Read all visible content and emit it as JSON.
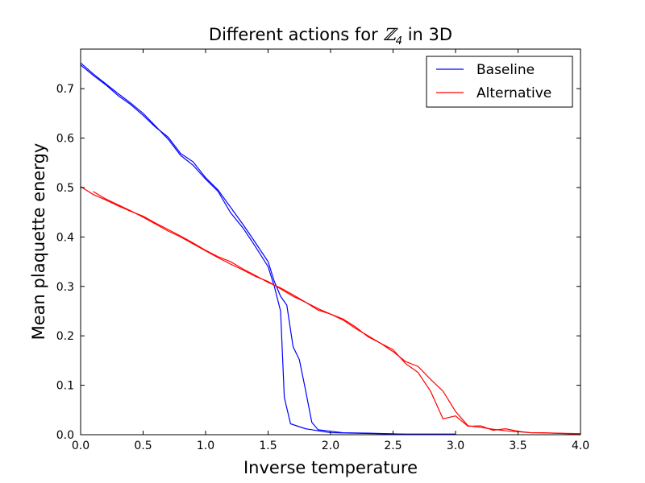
{
  "chart_data": {
    "type": "line",
    "title": "Different actions for ℤ₄ in 3D",
    "title_prefix": "Different actions for ",
    "title_math": "ℤ",
    "title_sub": "4",
    "title_suffix": " in 3D",
    "xlabel": "Inverse temperature",
    "ylabel": "Mean plaquette energy",
    "xlim": [
      0.0,
      4.0
    ],
    "ylim": [
      0.0,
      0.78
    ],
    "x_ticks": [
      "0.0",
      "0.5",
      "1.0",
      "1.5",
      "2.0",
      "2.5",
      "3.0",
      "3.5",
      "4.0"
    ],
    "y_ticks": [
      "0.0",
      "0.1",
      "0.2",
      "0.3",
      "0.4",
      "0.5",
      "0.6",
      "0.7"
    ],
    "grid": false,
    "legend": "top-right",
    "series": [
      {
        "name": "Baseline",
        "color": "#0000ff",
        "segments": [
          [
            [
              0.0,
              0.752
            ],
            [
              0.1,
              0.73
            ],
            [
              0.2,
              0.71
            ],
            [
              0.3,
              0.69
            ],
            [
              0.4,
              0.671
            ],
            [
              0.5,
              0.65
            ],
            [
              0.6,
              0.624
            ],
            [
              0.7,
              0.598
            ],
            [
              0.8,
              0.565
            ],
            [
              0.9,
              0.545
            ],
            [
              1.0,
              0.517
            ],
            [
              1.1,
              0.492
            ],
            [
              1.2,
              0.449
            ],
            [
              1.3,
              0.418
            ],
            [
              1.4,
              0.38
            ],
            [
              1.5,
              0.34
            ],
            [
              1.55,
              0.3
            ],
            [
              1.6,
              0.25
            ],
            [
              1.63,
              0.075
            ],
            [
              1.68,
              0.022
            ],
            [
              1.8,
              0.012
            ],
            [
              1.9,
              0.008
            ],
            [
              2.0,
              0.004
            ],
            [
              2.2,
              0.003
            ],
            [
              2.4,
              0.002
            ],
            [
              2.6,
              0.001
            ],
            [
              3.0,
              0.001
            ]
          ],
          [
            [
              0.0,
              0.748
            ],
            [
              0.1,
              0.727
            ],
            [
              0.2,
              0.708
            ],
            [
              0.3,
              0.686
            ],
            [
              0.4,
              0.668
            ],
            [
              0.5,
              0.646
            ],
            [
              0.6,
              0.622
            ],
            [
              0.7,
              0.602
            ],
            [
              0.8,
              0.569
            ],
            [
              0.9,
              0.552
            ],
            [
              1.0,
              0.52
            ],
            [
              1.1,
              0.495
            ],
            [
              1.2,
              0.46
            ],
            [
              1.3,
              0.425
            ],
            [
              1.4,
              0.388
            ],
            [
              1.5,
              0.35
            ],
            [
              1.55,
              0.31
            ],
            [
              1.6,
              0.28
            ],
            [
              1.65,
              0.262
            ],
            [
              1.7,
              0.178
            ],
            [
              1.75,
              0.152
            ],
            [
              1.8,
              0.09
            ],
            [
              1.85,
              0.025
            ],
            [
              1.9,
              0.01
            ],
            [
              2.0,
              0.007
            ],
            [
              2.1,
              0.004
            ],
            [
              2.3,
              0.003
            ],
            [
              2.6,
              0.001
            ],
            [
              3.0,
              0.001
            ]
          ]
        ]
      },
      {
        "name": "Alternative",
        "color": "#ff0000",
        "segments": [
          [
            [
              0.0,
              0.502
            ],
            [
              0.1,
              0.486
            ],
            [
              0.2,
              0.475
            ],
            [
              0.3,
              0.463
            ],
            [
              0.4,
              0.452
            ],
            [
              0.5,
              0.442
            ],
            [
              0.6,
              0.428
            ],
            [
              0.7,
              0.415
            ],
            [
              0.8,
              0.402
            ],
            [
              0.9,
              0.388
            ],
            [
              1.0,
              0.373
            ],
            [
              1.1,
              0.36
            ],
            [
              1.2,
              0.35
            ],
            [
              1.3,
              0.335
            ],
            [
              1.4,
              0.322
            ],
            [
              1.5,
              0.308
            ],
            [
              1.6,
              0.297
            ],
            [
              1.7,
              0.283
            ],
            [
              1.8,
              0.268
            ],
            [
              1.9,
              0.252
            ],
            [
              2.0,
              0.244
            ],
            [
              2.1,
              0.232
            ],
            [
              2.2,
              0.215
            ],
            [
              2.3,
              0.2
            ],
            [
              2.4,
              0.185
            ],
            [
              2.5,
              0.168
            ],
            [
              2.6,
              0.148
            ],
            [
              2.7,
              0.138
            ],
            [
              2.8,
              0.112
            ],
            [
              2.9,
              0.088
            ],
            [
              3.0,
              0.047
            ],
            [
              3.1,
              0.018
            ],
            [
              3.2,
              0.015
            ],
            [
              3.3,
              0.011
            ],
            [
              3.4,
              0.008
            ],
            [
              3.5,
              0.006
            ],
            [
              3.6,
              0.004
            ],
            [
              3.8,
              0.003
            ],
            [
              4.0,
              0.002
            ]
          ],
          [
            [
              0.1,
              0.492
            ],
            [
              0.2,
              0.477
            ],
            [
              0.3,
              0.465
            ],
            [
              0.4,
              0.453
            ],
            [
              0.5,
              0.44
            ],
            [
              0.6,
              0.426
            ],
            [
              0.7,
              0.412
            ],
            [
              0.8,
              0.4
            ],
            [
              0.9,
              0.386
            ],
            [
              1.0,
              0.372
            ],
            [
              1.1,
              0.358
            ],
            [
              1.2,
              0.345
            ],
            [
              1.3,
              0.333
            ],
            [
              1.4,
              0.32
            ],
            [
              1.5,
              0.31
            ],
            [
              1.6,
              0.295
            ],
            [
              1.7,
              0.28
            ],
            [
              1.8,
              0.268
            ],
            [
              1.9,
              0.255
            ],
            [
              2.0,
              0.244
            ],
            [
              2.1,
              0.234
            ],
            [
              2.2,
              0.218
            ],
            [
              2.3,
              0.198
            ],
            [
              2.4,
              0.185
            ],
            [
              2.5,
              0.172
            ],
            [
              2.6,
              0.144
            ],
            [
              2.7,
              0.126
            ],
            [
              2.8,
              0.088
            ],
            [
              2.9,
              0.032
            ],
            [
              3.0,
              0.038
            ],
            [
              3.1,
              0.017
            ],
            [
              3.2,
              0.018
            ],
            [
              3.3,
              0.009
            ],
            [
              3.4,
              0.012
            ],
            [
              3.5,
              0.007
            ],
            [
              3.6,
              0.004
            ],
            [
              3.7,
              0.004
            ],
            [
              3.8,
              0.003
            ],
            [
              4.0,
              0.001
            ]
          ]
        ]
      }
    ]
  }
}
